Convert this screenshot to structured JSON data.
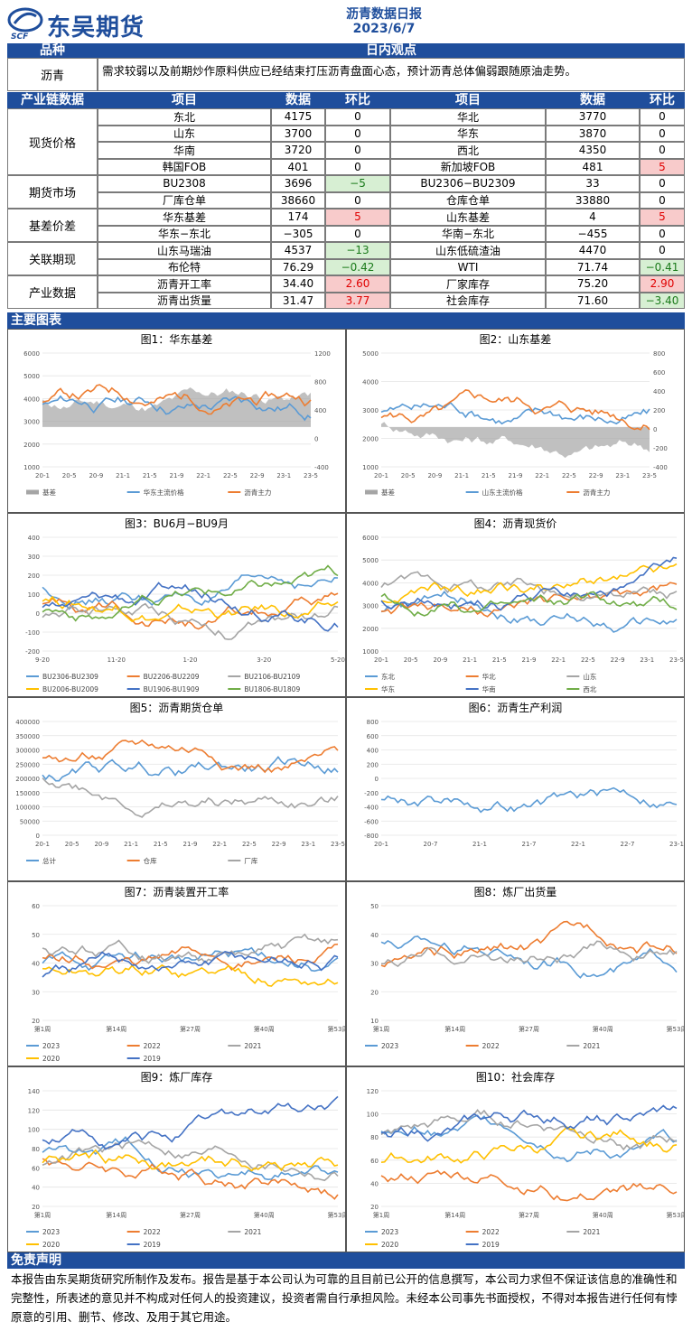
{
  "header": {
    "logo_text": "东吴期货",
    "logo_sub": "SCF",
    "title": "沥青数据日报",
    "date": "2023/6/7"
  },
  "view": {
    "col1": "品种",
    "col2": "日内观点",
    "variety": "沥青",
    "text": "需求较弱以及前期炒作原料供应已经结束打压沥青盘面心态，预计沥青总体偏弱跟随原油走势。"
  },
  "table": {
    "headers": [
      "产业链数据",
      "项目",
      "数据",
      "环比",
      "项目",
      "数据",
      "环比"
    ],
    "groups": [
      {
        "name": "现货价格",
        "rows": [
          [
            "东北",
            "4175",
            "0",
            "",
            "华北",
            "3770",
            "0",
            ""
          ],
          [
            "山东",
            "3700",
            "0",
            "",
            "华东",
            "3870",
            "0",
            ""
          ],
          [
            "华南",
            "3720",
            "0",
            "",
            "西北",
            "4350",
            "0",
            ""
          ],
          [
            "韩国FOB",
            "401",
            "0",
            "",
            "新加坡FOB",
            "481",
            "5",
            "red"
          ]
        ]
      },
      {
        "name": "期货市场",
        "rows": [
          [
            "BU2308",
            "3696",
            "−5",
            "grn",
            "BU2306−BU2309",
            "33",
            "0",
            ""
          ],
          [
            "厂库仓单",
            "38660",
            "0",
            "",
            "仓库仓单",
            "33880",
            "0",
            ""
          ]
        ]
      },
      {
        "name": "基差价差",
        "rows": [
          [
            "华东基差",
            "174",
            "5",
            "red",
            "山东基差",
            "4",
            "5",
            "red"
          ],
          [
            "华东−东北",
            "−305",
            "0",
            "",
            "华南−东北",
            "−455",
            "0",
            ""
          ]
        ]
      },
      {
        "name": "关联期现",
        "rows": [
          [
            "山东马瑞油",
            "4537",
            "−13",
            "grn",
            "山东低硫渣油",
            "4470",
            "0",
            ""
          ],
          [
            "布伦特",
            "76.29",
            "−0.42",
            "grn",
            "WTI",
            "71.74",
            "−0.41",
            "grn"
          ]
        ]
      },
      {
        "name": "产业数据",
        "rows": [
          [
            "沥青开工率",
            "34.40",
            "2.60",
            "red",
            "厂家库存",
            "75.20",
            "2.90",
            "red"
          ],
          [
            "沥青出货量",
            "31.47",
            "3.77",
            "red",
            "社会库存",
            "71.60",
            "−3.40",
            "grn"
          ]
        ]
      }
    ]
  },
  "charts_bar": "主要图表",
  "chart_data": [
    {
      "type": "line",
      "title": "图1：华东基差",
      "xticks": [
        "20-1",
        "20-5",
        "20-9",
        "21-1",
        "21-5",
        "21-9",
        "22-1",
        "22-5",
        "22-9",
        "23-1",
        "23-5"
      ],
      "yticks": [
        "6000",
        "5000",
        "4000",
        "3000",
        "2000",
        "1000"
      ],
      "y2ticks": [
        "1200",
        "800",
        "400",
        "0",
        "-400"
      ],
      "series": [
        {
          "name": "基差",
          "color": "#a5a5a5"
        },
        {
          "name": "华东主流价格",
          "color": "#5b9bd5"
        },
        {
          "name": "沥青主力",
          "color": "#ed7d31"
        }
      ]
    },
    {
      "type": "line",
      "title": "图2：山东基差",
      "xticks": [
        "20-1",
        "20-5",
        "20-9",
        "21-1",
        "21-5",
        "21-9",
        "22-1",
        "22-5",
        "22-9",
        "23-1",
        "23-5"
      ],
      "yticks": [
        "5000",
        "4000",
        "3000",
        "2000",
        "1000"
      ],
      "y2ticks": [
        "800",
        "600",
        "400",
        "200",
        "0",
        "-200",
        "-400"
      ],
      "series": [
        {
          "name": "基差",
          "color": "#a5a5a5"
        },
        {
          "name": "山东主流价格",
          "color": "#5b9bd5"
        },
        {
          "name": "沥青主力",
          "color": "#ed7d31"
        }
      ]
    },
    {
      "type": "line",
      "title": "图3：BU6月−BU9月",
      "xticks": [
        "9-20",
        "11-20",
        "1-20",
        "3-20",
        "5-20"
      ],
      "yticks": [
        "400",
        "300",
        "200",
        "100",
        "0",
        "-100",
        "-200"
      ],
      "series": [
        {
          "name": "BU2306-BU2309",
          "color": "#5b9bd5"
        },
        {
          "name": "BU2206-BU2209",
          "color": "#ed7d31"
        },
        {
          "name": "BU2106-BU2109",
          "color": "#a5a5a5"
        },
        {
          "name": "BU2006-BU2009",
          "color": "#ffc000"
        },
        {
          "name": "BU1906-BU1909",
          "color": "#4472c4"
        },
        {
          "name": "BU1806-BU1809",
          "color": "#70ad47"
        }
      ]
    },
    {
      "type": "line",
      "title": "图4：沥青现货价",
      "xticks": [
        "20-1",
        "20-5",
        "20-9",
        "21-1",
        "21-5",
        "21-9",
        "22-1",
        "22-5",
        "22-9",
        "23-1",
        "23-5"
      ],
      "yticks": [
        "6000",
        "5000",
        "4000",
        "3000",
        "2000",
        "1000"
      ],
      "series": [
        {
          "name": "东北",
          "color": "#5b9bd5"
        },
        {
          "name": "华北",
          "color": "#ed7d31"
        },
        {
          "name": "山东",
          "color": "#a5a5a5"
        },
        {
          "name": "华东",
          "color": "#ffc000"
        },
        {
          "name": "华南",
          "color": "#4472c4"
        },
        {
          "name": "西北",
          "color": "#70ad47"
        }
      ]
    },
    {
      "type": "line",
      "title": "图5：沥青期货仓单",
      "xticks": [
        "20-1",
        "20-5",
        "20-9",
        "21-1",
        "21-5",
        "21-9",
        "22-1",
        "22-5",
        "22-9",
        "23-1",
        "23-5"
      ],
      "yticks": [
        "400000",
        "350000",
        "300000",
        "250000",
        "200000",
        "150000",
        "100000",
        "50000",
        "0"
      ],
      "series": [
        {
          "name": "总计",
          "color": "#5b9bd5"
        },
        {
          "name": "仓库",
          "color": "#ed7d31"
        },
        {
          "name": "厂库",
          "color": "#a5a5a5"
        }
      ]
    },
    {
      "type": "line",
      "title": "图6：沥青生产利润",
      "xticks": [
        "20-1",
        "20-7",
        "21-1",
        "21-7",
        "22-1",
        "22-7",
        "23-1"
      ],
      "yticks": [
        "800",
        "600",
        "400",
        "200",
        "0",
        "-200",
        "-400",
        "-600",
        "-800"
      ],
      "series": [
        {
          "name": "",
          "color": "#5b9bd5"
        }
      ]
    },
    {
      "type": "line",
      "title": "图7：沥青装置开工率",
      "xticks": [
        "第1周",
        "第14周",
        "第27周",
        "第40周",
        "第53周"
      ],
      "yticks": [
        "60",
        "50",
        "40",
        "30",
        "20"
      ],
      "series": [
        {
          "name": "2023",
          "color": "#5b9bd5"
        },
        {
          "name": "2022",
          "color": "#ed7d31"
        },
        {
          "name": "2021",
          "color": "#a5a5a5"
        },
        {
          "name": "2020",
          "color": "#ffc000"
        },
        {
          "name": "2019",
          "color": "#4472c4"
        }
      ]
    },
    {
      "type": "line",
      "title": "图8：炼厂出货量",
      "xticks": [
        "第1周",
        "第14周",
        "第27周",
        "第40周",
        "第53周"
      ],
      "yticks": [
        "50",
        "40",
        "30",
        "20",
        "10"
      ],
      "series": [
        {
          "name": "2023",
          "color": "#5b9bd5"
        },
        {
          "name": "2022",
          "color": "#ed7d31"
        },
        {
          "name": "2021",
          "color": "#a5a5a5"
        }
      ]
    },
    {
      "type": "line",
      "title": "图9：炼厂库存",
      "xticks": [
        "第1周",
        "第14周",
        "第27周",
        "第40周",
        "第53周"
      ],
      "yticks": [
        "140",
        "120",
        "100",
        "80",
        "60",
        "40",
        "20"
      ],
      "series": [
        {
          "name": "2023",
          "color": "#5b9bd5"
        },
        {
          "name": "2022",
          "color": "#ed7d31"
        },
        {
          "name": "2021",
          "color": "#a5a5a5"
        },
        {
          "name": "2020",
          "color": "#ffc000"
        },
        {
          "name": "2019",
          "color": "#4472c4"
        }
      ]
    },
    {
      "type": "line",
      "title": "图10：社会库存",
      "xticks": [
        "第1周",
        "第14周",
        "第27周",
        "第40周",
        "第53周"
      ],
      "yticks": [
        "120",
        "100",
        "80",
        "60",
        "40",
        "20"
      ],
      "series": [
        {
          "name": "2023",
          "color": "#5b9bd5"
        },
        {
          "name": "2022",
          "color": "#ed7d31"
        },
        {
          "name": "2021",
          "color": "#a5a5a5"
        },
        {
          "name": "2020",
          "color": "#ffc000"
        },
        {
          "name": "2019",
          "color": "#4472c4"
        }
      ]
    }
  ],
  "disclaimer": {
    "title": "免责声明",
    "text": "本报告由东吴期货研究所制作及发布。报告是基于本公司认为可靠的且目前已公开的信息撰写，本公司力求但不保证该信息的准确性和完整性，所表述的意见并不构成对任何人的投资建议，投资者需自行承担风险。未经本公司事先书面授权，不得对本报告进行任何有悖原意的引用、删节、修改、及用于其它用途。"
  }
}
